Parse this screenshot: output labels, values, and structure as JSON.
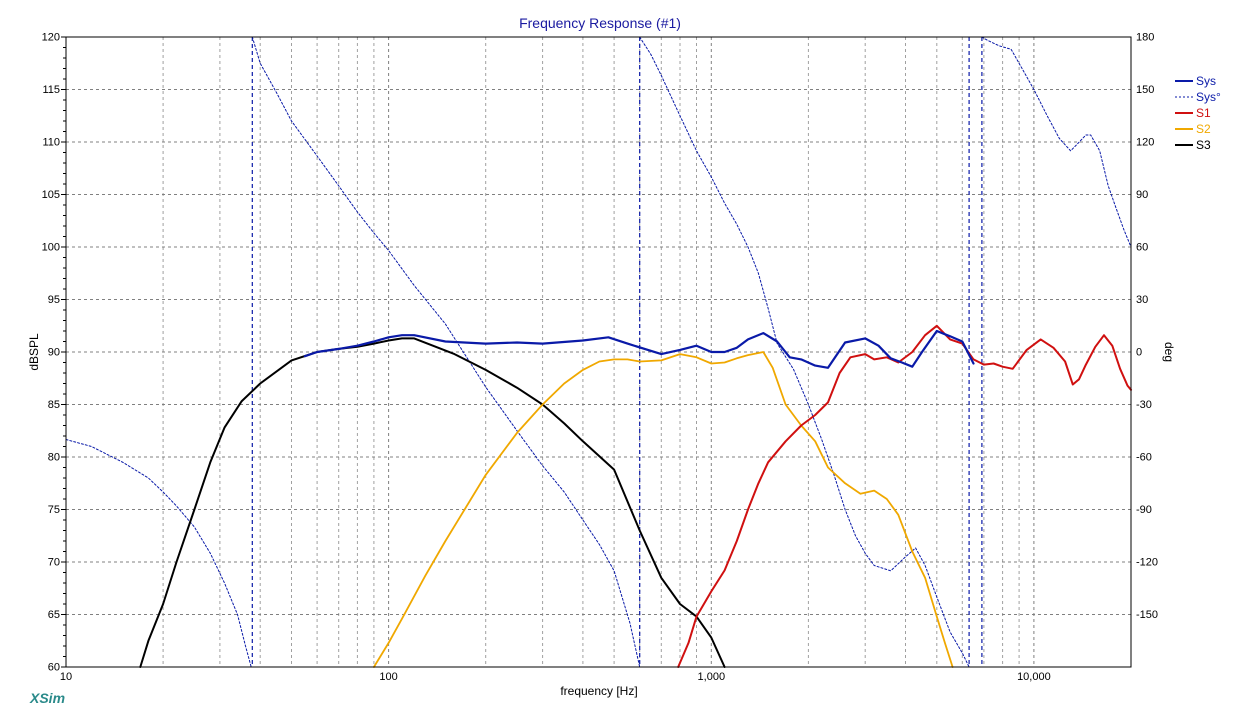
{
  "app": {
    "logo_text": "XSim"
  },
  "colors": {
    "Sys": "#0a1aa8",
    "Sys_phase": "#0a1aa8",
    "S1": "#d01010",
    "S2": "#f0a800",
    "S3": "#000000",
    "title": "#1a1aa0",
    "logo": "#2a8a8a",
    "grid_major": "#808080",
    "grid_minor": "#a0a0a0"
  },
  "chart_data": {
    "type": "line",
    "title": "Frequency Response (#1)",
    "xlabel": "frequency [Hz]",
    "ylabel": "dBSPL",
    "y2label": "deg",
    "x_scale": "log",
    "xlim": [
      10,
      20000
    ],
    "ylim": [
      60,
      120
    ],
    "y2lim": [
      -180,
      180
    ],
    "grid": true,
    "legend_position": "right",
    "x_tick_labels": [
      {
        "value": 10,
        "label": "10"
      },
      {
        "value": 100,
        "label": "100"
      },
      {
        "value": 1000,
        "label": "1,000"
      },
      {
        "value": 10000,
        "label": "10,000"
      }
    ],
    "y_ticks": [
      60,
      65,
      70,
      75,
      80,
      85,
      90,
      95,
      100,
      105,
      110,
      115,
      120
    ],
    "y2_ticks": [
      -150,
      -120,
      -90,
      -60,
      -30,
      0,
      30,
      60,
      90,
      120,
      150,
      180
    ],
    "series": [
      {
        "name": "Sys",
        "axis": "left",
        "style": "solid",
        "width": 2.2,
        "points": [
          [
            55,
            89.6
          ],
          [
            60,
            90.0
          ],
          [
            70,
            90.3
          ],
          [
            80,
            90.6
          ],
          [
            90,
            91.0
          ],
          [
            100,
            91.4
          ],
          [
            110,
            91.6
          ],
          [
            120,
            91.6
          ],
          [
            150,
            91.0
          ],
          [
            200,
            90.8
          ],
          [
            250,
            90.9
          ],
          [
            300,
            90.8
          ],
          [
            400,
            91.1
          ],
          [
            480,
            91.4
          ],
          [
            550,
            90.8
          ],
          [
            700,
            89.8
          ],
          [
            800,
            90.2
          ],
          [
            900,
            90.6
          ],
          [
            1000,
            90.0
          ],
          [
            1100,
            90.0
          ],
          [
            1200,
            90.4
          ],
          [
            1300,
            91.2
          ],
          [
            1450,
            91.8
          ],
          [
            1600,
            91.0
          ],
          [
            1750,
            89.5
          ],
          [
            1900,
            89.3
          ],
          [
            2100,
            88.7
          ],
          [
            2300,
            88.5
          ],
          [
            2600,
            90.9
          ],
          [
            3000,
            91.3
          ],
          [
            3300,
            90.6
          ],
          [
            3600,
            89.4
          ],
          [
            3900,
            89.0
          ],
          [
            4200,
            88.6
          ],
          [
            4500,
            90.0
          ],
          [
            5000,
            92.0
          ],
          [
            5500,
            91.5
          ],
          [
            6000,
            91.0
          ],
          [
            6500,
            88.9
          ]
        ]
      },
      {
        "name": "Sys°",
        "axis": "right",
        "style": "dashed",
        "width": 1.0,
        "segments": [
          [
            [
              10,
              -50
            ],
            [
              12,
              -54
            ],
            [
              15,
              -63
            ],
            [
              18,
              -72
            ],
            [
              20,
              -80
            ],
            [
              22,
              -88
            ],
            [
              25,
              -100
            ],
            [
              28,
              -115
            ],
            [
              31,
              -132
            ],
            [
              34,
              -150
            ],
            [
              36,
              -168
            ],
            [
              37.5,
              -180
            ]
          ],
          [
            [
              37.8,
              180
            ],
            [
              40,
              165
            ],
            [
              45,
              148
            ],
            [
              50,
              132
            ],
            [
              60,
              112
            ],
            [
              70,
              95
            ],
            [
              80,
              80
            ],
            [
              90,
              68
            ],
            [
              100,
              58
            ],
            [
              120,
              38
            ],
            [
              150,
              16
            ],
            [
              200,
              -20
            ],
            [
              250,
              -45
            ],
            [
              300,
              -65
            ],
            [
              350,
              -80
            ],
            [
              400,
              -96
            ],
            [
              450,
              -110
            ],
            [
              500,
              -125
            ],
            [
              560,
              -155
            ],
            [
              600,
              -180
            ]
          ],
          [
            [
              600,
              180
            ],
            [
              650,
              170
            ],
            [
              700,
              158
            ],
            [
              800,
              135
            ],
            [
              900,
              115
            ],
            [
              1000,
              100
            ],
            [
              1100,
              85
            ],
            [
              1200,
              73
            ],
            [
              1300,
              60
            ],
            [
              1400,
              45
            ],
            [
              1500,
              25
            ],
            [
              1600,
              5
            ],
            [
              1800,
              -10
            ],
            [
              2000,
              -30
            ],
            [
              2200,
              -50
            ],
            [
              2400,
              -70
            ],
            [
              2600,
              -90
            ],
            [
              2800,
              -105
            ],
            [
              3000,
              -115
            ],
            [
              3200,
              -122
            ],
            [
              3600,
              -125
            ],
            [
              4000,
              -117
            ],
            [
              4300,
              -112
            ],
            [
              4600,
              -122
            ],
            [
              5000,
              -140
            ],
            [
              5500,
              -160
            ],
            [
              6000,
              -172
            ],
            [
              6300,
              -180
            ]
          ],
          [
            [
              6900,
              180
            ],
            [
              7200,
              178
            ],
            [
              7800,
              175
            ],
            [
              8500,
              173
            ],
            [
              9000,
              165
            ],
            [
              10000,
              150
            ],
            [
              11000,
              135
            ],
            [
              12000,
              122
            ],
            [
              13000,
              115
            ],
            [
              13500,
              118
            ],
            [
              14500,
              124
            ],
            [
              15000,
              124
            ],
            [
              16000,
              115
            ],
            [
              17000,
              95
            ],
            [
              18000,
              82
            ],
            [
              19000,
              70
            ],
            [
              20000,
              60
            ]
          ]
        ]
      },
      {
        "name": "S1",
        "axis": "left",
        "style": "solid",
        "width": 2.0,
        "points": [
          [
            790,
            60
          ],
          [
            850,
            62.3
          ],
          [
            900,
            64.8
          ],
          [
            1000,
            67.2
          ],
          [
            1100,
            69.2
          ],
          [
            1200,
            72.0
          ],
          [
            1300,
            75.0
          ],
          [
            1400,
            77.5
          ],
          [
            1500,
            79.5
          ],
          [
            1700,
            81.5
          ],
          [
            1900,
            83.0
          ],
          [
            2100,
            84.0
          ],
          [
            2300,
            85.2
          ],
          [
            2500,
            88.0
          ],
          [
            2700,
            89.5
          ],
          [
            3000,
            89.8
          ],
          [
            3200,
            89.3
          ],
          [
            3500,
            89.5
          ],
          [
            3800,
            89.0
          ],
          [
            4200,
            90.0
          ],
          [
            4600,
            91.6
          ],
          [
            5000,
            92.5
          ],
          [
            5500,
            91.2
          ],
          [
            6000,
            90.8
          ],
          [
            6500,
            89.3
          ],
          [
            7000,
            88.8
          ],
          [
            7500,
            88.9
          ],
          [
            8000,
            88.6
          ],
          [
            8600,
            88.4
          ],
          [
            9500,
            90.2
          ],
          [
            10500,
            91.2
          ],
          [
            11500,
            90.4
          ],
          [
            12500,
            89.1
          ],
          [
            13200,
            86.9
          ],
          [
            13800,
            87.4
          ],
          [
            14500,
            88.8
          ],
          [
            15500,
            90.5
          ],
          [
            16500,
            91.6
          ],
          [
            17500,
            90.6
          ],
          [
            18500,
            88.4
          ],
          [
            19500,
            86.8
          ],
          [
            20000,
            86.4
          ]
        ]
      },
      {
        "name": "S2",
        "axis": "left",
        "style": "solid",
        "width": 1.8,
        "points": [
          [
            90,
            60
          ],
          [
            100,
            62.3
          ],
          [
            110,
            64.6
          ],
          [
            130,
            68.7
          ],
          [
            150,
            72.0
          ],
          [
            180,
            76.0
          ],
          [
            200,
            78.3
          ],
          [
            250,
            82.3
          ],
          [
            300,
            85.0
          ],
          [
            350,
            87.0
          ],
          [
            400,
            88.3
          ],
          [
            450,
            89.1
          ],
          [
            500,
            89.3
          ],
          [
            550,
            89.3
          ],
          [
            600,
            89.1
          ],
          [
            700,
            89.2
          ],
          [
            800,
            89.8
          ],
          [
            900,
            89.5
          ],
          [
            1000,
            88.9
          ],
          [
            1100,
            89.0
          ],
          [
            1200,
            89.4
          ],
          [
            1300,
            89.7
          ],
          [
            1400,
            89.9
          ],
          [
            1450,
            90.0
          ],
          [
            1550,
            88.5
          ],
          [
            1700,
            85.0
          ],
          [
            1900,
            83.0
          ],
          [
            2100,
            81.5
          ],
          [
            2300,
            79.0
          ],
          [
            2600,
            77.5
          ],
          [
            2900,
            76.5
          ],
          [
            3200,
            76.8
          ],
          [
            3500,
            76.0
          ],
          [
            3800,
            74.5
          ],
          [
            4200,
            71.0
          ],
          [
            4600,
            68.5
          ],
          [
            5000,
            64.8
          ],
          [
            5300,
            62.3
          ],
          [
            5600,
            60
          ]
        ]
      },
      {
        "name": "S3",
        "axis": "left",
        "style": "solid",
        "width": 2.0,
        "points": [
          [
            17,
            60
          ],
          [
            18,
            62.5
          ],
          [
            20,
            66.0
          ],
          [
            22,
            70.0
          ],
          [
            25,
            75.0
          ],
          [
            28,
            79.5
          ],
          [
            31,
            82.8
          ],
          [
            35,
            85.3
          ],
          [
            40,
            87.0
          ],
          [
            50,
            89.2
          ],
          [
            60,
            90.0
          ],
          [
            70,
            90.3
          ],
          [
            80,
            90.5
          ],
          [
            90,
            90.8
          ],
          [
            100,
            91.1
          ],
          [
            110,
            91.3
          ],
          [
            120,
            91.3
          ],
          [
            140,
            90.5
          ],
          [
            160,
            89.8
          ],
          [
            200,
            88.3
          ],
          [
            250,
            86.6
          ],
          [
            300,
            85.0
          ],
          [
            350,
            83.2
          ],
          [
            400,
            81.5
          ],
          [
            500,
            78.8
          ],
          [
            600,
            73.0
          ],
          [
            700,
            68.5
          ],
          [
            800,
            66.0
          ],
          [
            900,
            64.8
          ],
          [
            1000,
            62.8
          ],
          [
            1100,
            60
          ]
        ]
      }
    ],
    "crossover_markers_hz": [
      37.8,
      600,
      6300,
      6900
    ]
  }
}
